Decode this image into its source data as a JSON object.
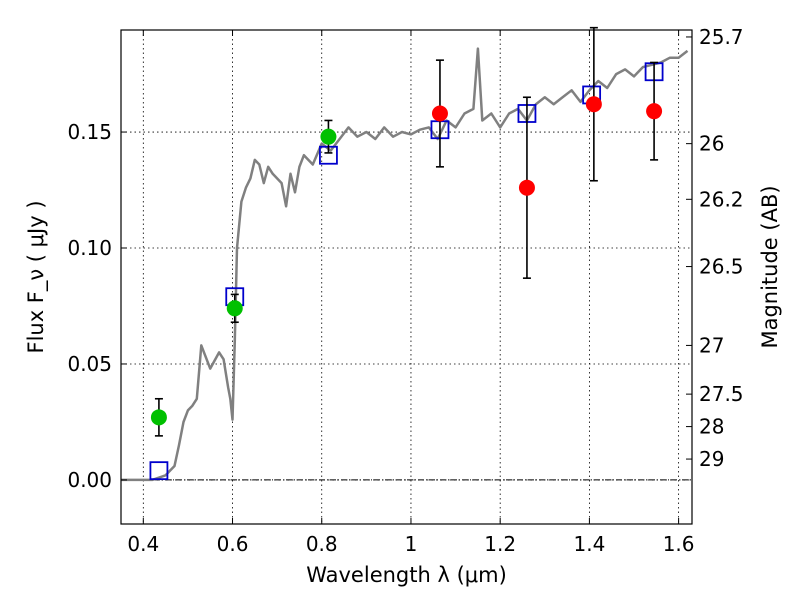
{
  "chart_data": {
    "type": "scatter",
    "xlabel": "Wavelength  λ (μm)",
    "ylabel": "Flux  F_ν  ( μJy )",
    "y2label": "Magnitude (AB)",
    "xlim": [
      0.35,
      1.63
    ],
    "ylim": [
      -0.019,
      0.194
    ],
    "x_ticks": [
      0.4,
      0.6,
      0.8,
      1.0,
      1.2,
      1.4,
      1.6
    ],
    "x_tick_labels": [
      "0.4",
      "0.6",
      "0.8",
      "1",
      "1.2",
      "1.4",
      "1.6"
    ],
    "y_ticks": [
      0.0,
      0.05,
      0.1,
      0.15
    ],
    "y_tick_labels": [
      "0.00",
      "0.05",
      "0.10",
      "0.15"
    ],
    "y2_ticks": [
      {
        "label": "25.7",
        "flux": 0.191
      },
      {
        "label": "26",
        "flux": 0.145
      },
      {
        "label": "26.2",
        "flux": 0.121
      },
      {
        "label": "26.5",
        "flux": 0.092
      },
      {
        "label": "27",
        "flux": 0.058
      },
      {
        "label": "27.5",
        "flux": 0.037
      },
      {
        "label": "28",
        "flux": 0.023
      },
      {
        "label": "29",
        "flux": 0.009
      }
    ],
    "grid": true,
    "zero_line": true,
    "colors": {
      "model": "#808080",
      "green": "#00c000",
      "red": "#ff0000",
      "square": "#0000cc",
      "errorbar": "#000000"
    },
    "series": [
      {
        "kind": "model-spectrum",
        "x": [
          0.35,
          0.4,
          0.42,
          0.45,
          0.47,
          0.48,
          0.49,
          0.5,
          0.51,
          0.52,
          0.53,
          0.55,
          0.57,
          0.58,
          0.59,
          0.595,
          0.6,
          0.605,
          0.61,
          0.62,
          0.63,
          0.64,
          0.65,
          0.66,
          0.67,
          0.68,
          0.69,
          0.7,
          0.71,
          0.72,
          0.73,
          0.74,
          0.75,
          0.76,
          0.78,
          0.8,
          0.82,
          0.84,
          0.86,
          0.88,
          0.9,
          0.92,
          0.94,
          0.96,
          0.98,
          1.0,
          1.02,
          1.04,
          1.06,
          1.08,
          1.1,
          1.12,
          1.14,
          1.15,
          1.16,
          1.18,
          1.2,
          1.22,
          1.24,
          1.26,
          1.28,
          1.3,
          1.32,
          1.34,
          1.36,
          1.38,
          1.4,
          1.42,
          1.44,
          1.46,
          1.48,
          1.5,
          1.52,
          1.54,
          1.56,
          1.58,
          1.6,
          1.62
        ],
        "y": [
          0.0,
          0.0,
          0.0,
          0.002,
          0.006,
          0.015,
          0.025,
          0.03,
          0.032,
          0.035,
          0.058,
          0.048,
          0.055,
          0.052,
          0.04,
          0.035,
          0.026,
          0.06,
          0.1,
          0.12,
          0.126,
          0.13,
          0.138,
          0.136,
          0.128,
          0.135,
          0.132,
          0.13,
          0.128,
          0.118,
          0.132,
          0.124,
          0.135,
          0.14,
          0.136,
          0.145,
          0.142,
          0.147,
          0.152,
          0.148,
          0.15,
          0.147,
          0.152,
          0.148,
          0.15,
          0.149,
          0.151,
          0.152,
          0.147,
          0.155,
          0.152,
          0.158,
          0.16,
          0.186,
          0.155,
          0.158,
          0.152,
          0.158,
          0.16,
          0.155,
          0.162,
          0.165,
          0.162,
          0.165,
          0.168,
          0.163,
          0.168,
          0.172,
          0.169,
          0.175,
          0.177,
          0.174,
          0.178,
          0.179,
          0.18,
          0.182,
          0.182,
          0.185
        ]
      },
      {
        "kind": "green-points",
        "x": [
          0.435,
          0.605,
          0.815
        ],
        "y": [
          0.027,
          0.074,
          0.148
        ],
        "err": [
          0.008,
          0.006,
          0.007
        ]
      },
      {
        "kind": "red-points",
        "x": [
          1.065,
          1.26,
          1.41,
          1.545
        ],
        "y": [
          0.158,
          0.126,
          0.162,
          0.159
        ],
        "err": [
          0.023,
          0.039,
          0.033,
          0.021
        ]
      },
      {
        "kind": "blue-squares",
        "x": [
          0.435,
          0.605,
          0.815,
          1.065,
          1.26,
          1.405,
          1.545
        ],
        "y": [
          0.004,
          0.079,
          0.14,
          0.151,
          0.158,
          0.166,
          0.176
        ]
      }
    ]
  }
}
